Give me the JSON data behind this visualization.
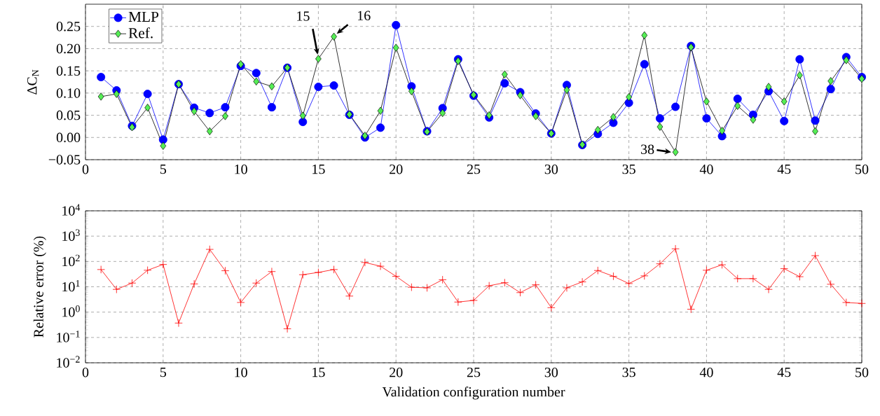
{
  "chart_data": [
    {
      "type": "line",
      "ylabel": "ΔC$_{N}$",
      "xlim": [
        0,
        50
      ],
      "ylim": [
        -0.05,
        0.3
      ],
      "xticks": [
        0,
        5,
        10,
        15,
        20,
        25,
        30,
        35,
        40,
        45,
        50
      ],
      "yticks": [
        {
          "value": -0.05,
          "label": "−0.05"
        },
        {
          "value": 0,
          "label": "0.00"
        },
        {
          "value": 0.05,
          "label": "0.05"
        },
        {
          "value": 0.1,
          "label": "0.10"
        },
        {
          "value": 0.15,
          "label": "0.15"
        },
        {
          "value": 0.2,
          "label": "0.20"
        },
        {
          "value": 0.25,
          "label": "0.25"
        }
      ],
      "x": [
        1,
        2,
        3,
        4,
        5,
        6,
        7,
        8,
        9,
        10,
        11,
        12,
        13,
        14,
        15,
        16,
        17,
        18,
        19,
        20,
        21,
        22,
        23,
        24,
        25,
        26,
        27,
        28,
        29,
        30,
        31,
        32,
        33,
        34,
        35,
        36,
        37,
        38,
        39,
        40,
        41,
        42,
        43,
        44,
        45,
        46,
        47,
        48,
        49,
        50
      ],
      "grid": true,
      "legend": "top left",
      "series": [
        {
          "name": "MLP",
          "color": "#0000ff",
          "marker": "circle",
          "values": [
            0.136,
            0.106,
            0.026,
            0.098,
            -0.005,
            0.12,
            0.067,
            0.055,
            0.068,
            0.161,
            0.145,
            0.068,
            0.157,
            0.035,
            0.114,
            0.117,
            0.051,
            0.0,
            0.022,
            0.253,
            0.115,
            0.014,
            0.066,
            0.176,
            0.094,
            0.045,
            0.122,
            0.102,
            0.054,
            0.009,
            0.118,
            -0.017,
            0.008,
            0.033,
            0.078,
            0.165,
            0.043,
            0.069,
            0.206,
            0.043,
            0.003,
            0.087,
            0.051,
            0.104,
            0.037,
            0.176,
            0.038,
            0.109,
            0.181,
            0.136
          ]
        },
        {
          "name": "Ref.",
          "color": "#55ee55",
          "marker": "diamond",
          "values": [
            0.092,
            0.098,
            0.023,
            0.067,
            -0.019,
            0.12,
            0.059,
            0.014,
            0.048,
            0.165,
            0.126,
            0.115,
            0.157,
            0.049,
            0.177,
            0.227,
            0.052,
            0.004,
            0.06,
            0.202,
            0.104,
            0.013,
            0.055,
            0.172,
            0.096,
            0.05,
            0.142,
            0.095,
            0.048,
            0.009,
            0.107,
            -0.016,
            0.017,
            0.046,
            0.091,
            0.23,
            0.024,
            -0.033,
            0.203,
            0.081,
            0.015,
            0.071,
            0.04,
            0.114,
            0.081,
            0.14,
            0.014,
            0.127,
            0.174,
            0.132
          ]
        }
      ],
      "annotations": [
        {
          "text": "15",
          "x": 15,
          "y": 0.177
        },
        {
          "text": "16",
          "x": 16,
          "y": 0.227
        },
        {
          "text": "38",
          "x": 38,
          "y": -0.033
        }
      ]
    },
    {
      "type": "line",
      "xlabel": "Validation configuration number",
      "ylabel": "Relative error (%)",
      "log": "y",
      "xlim": [
        0,
        50
      ],
      "ylim": [
        0.01,
        10000
      ],
      "xticks": [
        0,
        5,
        10,
        15,
        20,
        25,
        30,
        35,
        40,
        45,
        50
      ],
      "yticks": [
        {
          "value": 0.01,
          "label": "10$^{−2}$"
        },
        {
          "value": 0.1,
          "label": "10$^{−1}$"
        },
        {
          "value": 1,
          "label": "10$^{0}$"
        },
        {
          "value": 10,
          "label": "10$^{1}$"
        },
        {
          "value": 100,
          "label": "10$^{2}$"
        },
        {
          "value": 1000,
          "label": "10$^{3}$"
        },
        {
          "value": 10000,
          "label": "10$^{4}$"
        }
      ],
      "x": [
        1,
        2,
        3,
        4,
        5,
        6,
        7,
        8,
        9,
        10,
        11,
        12,
        13,
        14,
        15,
        16,
        17,
        18,
        19,
        20,
        21,
        22,
        23,
        24,
        25,
        26,
        27,
        28,
        29,
        30,
        31,
        32,
        33,
        34,
        35,
        36,
        37,
        38,
        39,
        40,
        41,
        42,
        43,
        44,
        45,
        46,
        47,
        48,
        49,
        50
      ],
      "grid": true,
      "series": [
        {
          "color": "#ff0000",
          "marker": "cross",
          "values": [
            48,
            7.9,
            14,
            45,
            76,
            0.37,
            13,
            300,
            43,
            2.4,
            14,
            40,
            0.22,
            30,
            37,
            48,
            4.3,
            91,
            65,
            26,
            9.6,
            9.1,
            19,
            2.5,
            2.9,
            11,
            14.5,
            5.9,
            12,
            1.5,
            9.1,
            15.6,
            44,
            26,
            13.4,
            27,
            81,
            316,
            1.3,
            45,
            74,
            21,
            21,
            7.9,
            52,
            25,
            170,
            12.6,
            2.4,
            2.2
          ]
        }
      ]
    }
  ]
}
